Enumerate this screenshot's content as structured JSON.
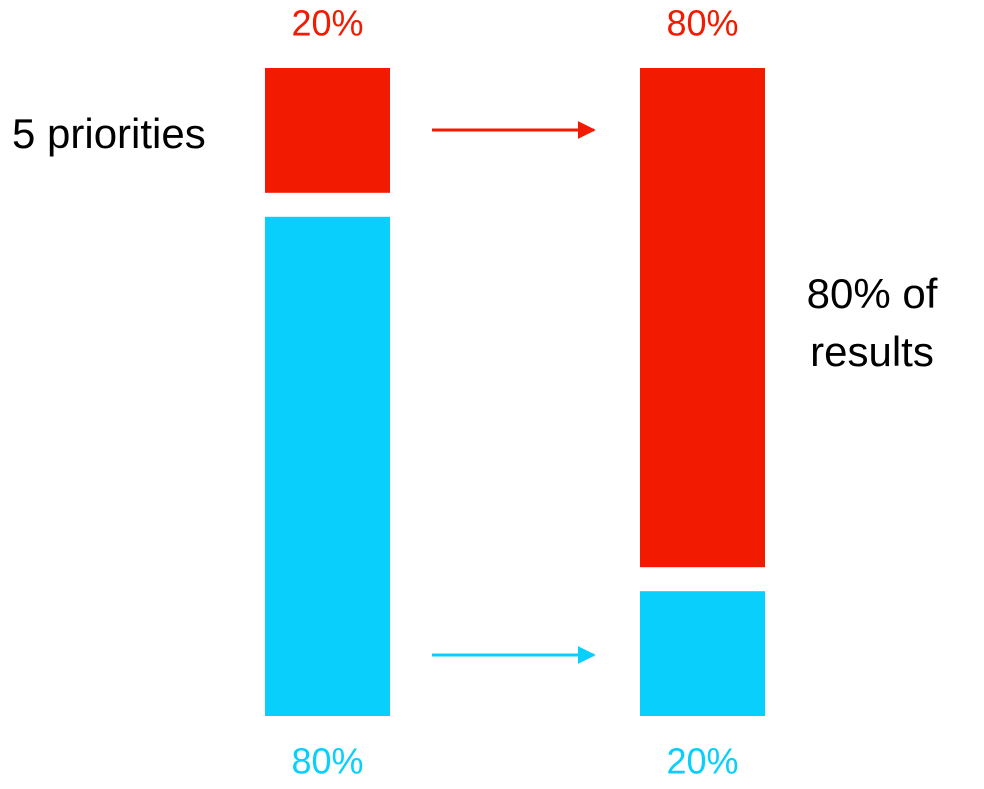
{
  "chart_data": {
    "type": "bar",
    "stacked": true,
    "categories": [
      null,
      null
    ],
    "series": [
      {
        "color": "#f21a00",
        "values": [
          20,
          80
        ],
        "value_labels": [
          "20%",
          "80%"
        ]
      },
      {
        "color": "#08cffc",
        "values": [
          80,
          20
        ],
        "value_labels": [
          "80%",
          "20%"
        ]
      }
    ],
    "annotations": [
      "5 priorities",
      "80% of",
      "results"
    ]
  }
}
